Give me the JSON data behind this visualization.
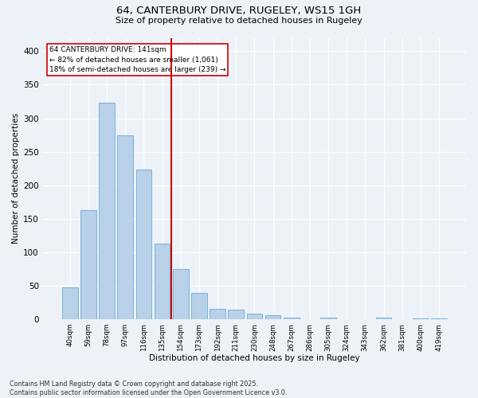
{
  "title": "64, CANTERBURY DRIVE, RUGELEY, WS15 1GH",
  "subtitle": "Size of property relative to detached houses in Rugeley",
  "xlabel": "Distribution of detached houses by size in Rugeley",
  "ylabel": "Number of detached properties",
  "categories": [
    "40sqm",
    "59sqm",
    "78sqm",
    "97sqm",
    "116sqm",
    "135sqm",
    "154sqm",
    "173sqm",
    "192sqm",
    "211sqm",
    "230sqm",
    "248sqm",
    "267sqm",
    "286sqm",
    "305sqm",
    "324sqm",
    "343sqm",
    "362sqm",
    "381sqm",
    "400sqm",
    "419sqm"
  ],
  "values": [
    48,
    163,
    323,
    275,
    224,
    113,
    75,
    39,
    15,
    14,
    9,
    6,
    3,
    0,
    3,
    0,
    0,
    2,
    0,
    1,
    1
  ],
  "bar_color": "#b8d0e8",
  "bar_edge_color": "#6aaad4",
  "vline_x": 5.5,
  "vline_color": "#cc0000",
  "annotation_text": "64 CANTERBURY DRIVE: 141sqm\n← 82% of detached houses are smaller (1,061)\n18% of semi-detached houses are larger (239) →",
  "annotation_box_color": "#ffffff",
  "annotation_box_edge_color": "#cc0000",
  "background_color": "#edf1f8",
  "plot_bg_color": "#edf1f8",
  "grid_color": "#ffffff",
  "footer_text": "Contains HM Land Registry data © Crown copyright and database right 2025.\nContains public sector information licensed under the Open Government Licence v3.0.",
  "ylim": [
    0,
    420
  ],
  "yticks": [
    0,
    50,
    100,
    150,
    200,
    250,
    300,
    350,
    400
  ]
}
